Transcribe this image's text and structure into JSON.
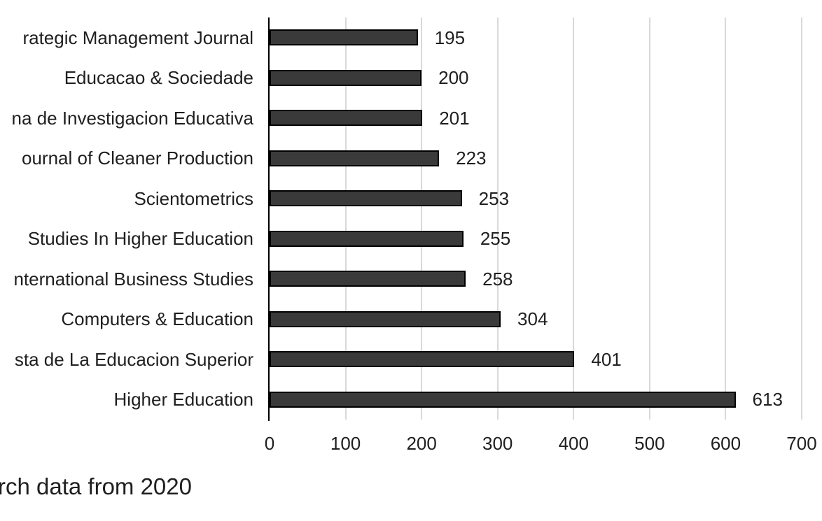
{
  "chart_data": {
    "type": "bar",
    "orientation": "horizontal",
    "title": "",
    "xlabel": "",
    "ylabel": "",
    "categories": [
      "rategic Management Journal",
      "Educacao & Sociedade",
      "na de Investigacion Educativa",
      "ournal of Cleaner Production",
      "Scientometrics",
      "Studies In Higher Education",
      "nternational Business Studies",
      "Computers & Education",
      "sta de La Educacion Superior",
      "Higher Education"
    ],
    "values": [
      195,
      200,
      201,
      223,
      253,
      255,
      258,
      304,
      401,
      613
    ],
    "data_labels": [
      "195",
      "200",
      "201",
      "223",
      "253",
      "255",
      "258",
      "304",
      "401",
      "613"
    ],
    "xlim": [
      0,
      700
    ],
    "x_ticks": [
      0,
      100,
      200,
      300,
      400,
      500,
      600,
      700
    ],
    "grid": true,
    "legend": false,
    "colors": {
      "bar_fill": "#3a3a3a",
      "bar_border": "#000000",
      "gridline": "#d9d9d9",
      "axis_line": "#000000",
      "text": "#1f1f1f"
    }
  },
  "caption": {
    "text": "rch data from 2020"
  }
}
